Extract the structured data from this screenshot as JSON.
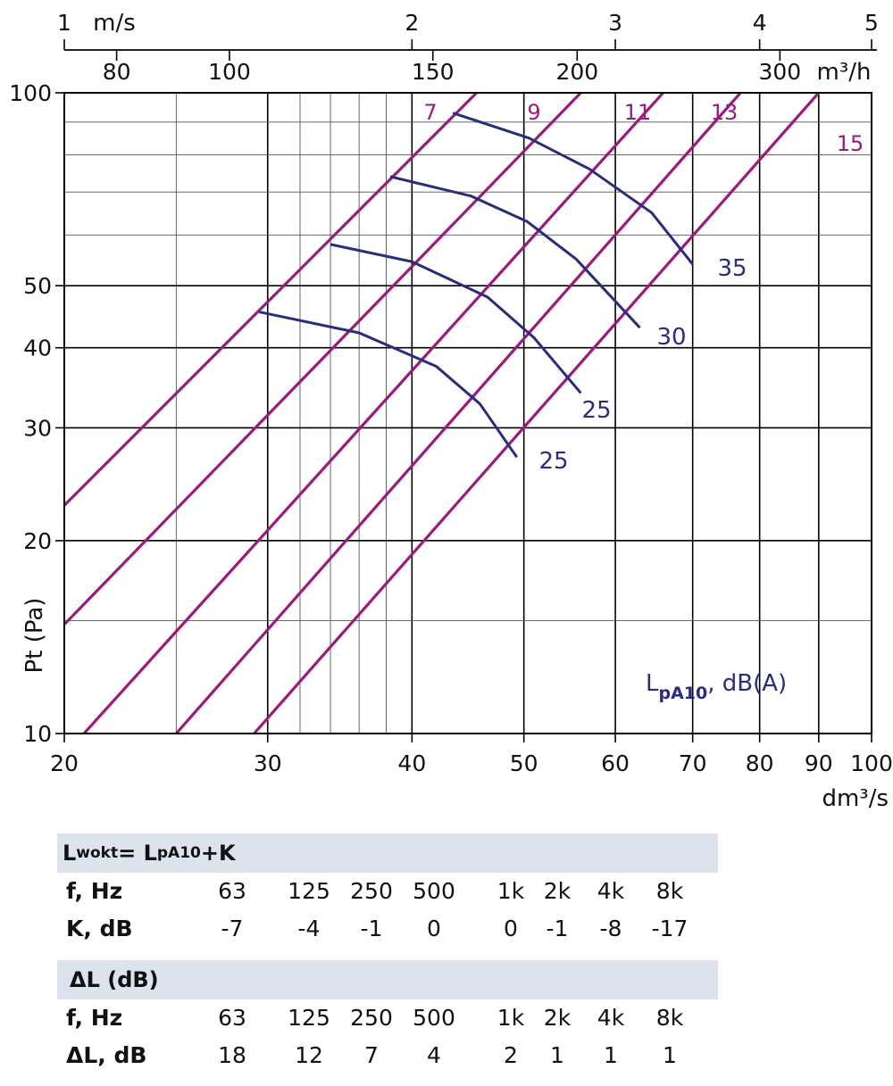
{
  "chart_data": {
    "type": "line",
    "ylabel": "Pt (Pa)",
    "xlabel": "dm³/s",
    "x_scale": "log",
    "y_scale": "log",
    "xlim": [
      20,
      100
    ],
    "ylim": [
      10,
      100
    ],
    "x_ticks": [
      20,
      30,
      40,
      50,
      60,
      70,
      80,
      90,
      100
    ],
    "y_ticks": [
      10,
      20,
      30,
      40,
      50,
      100
    ],
    "y_tick_labels": [
      "10",
      "20",
      "30",
      "40",
      "50",
      "100"
    ],
    "top_axis_velocity": {
      "unit": "m/s",
      "ticks": [
        {
          "label": "1",
          "x_dm3s": 20.0
        },
        {
          "label": "2",
          "x_dm3s": 40.0
        },
        {
          "label": "3",
          "x_dm3s": 60.0
        },
        {
          "label": "4",
          "x_dm3s": 80.0
        },
        {
          "label": "5",
          "x_dm3s": 100.0
        }
      ]
    },
    "top_axis_flow": {
      "unit": "m³/h",
      "ticks": [
        {
          "label": "80",
          "x_dm3s": 22.2
        },
        {
          "label": "100",
          "x_dm3s": 27.8
        },
        {
          "label": "150",
          "x_dm3s": 41.7
        },
        {
          "label": "200",
          "x_dm3s": 55.6
        },
        {
          "label": "300",
          "x_dm3s": 83.3
        }
      ]
    },
    "damper_lines": {
      "series": [
        {
          "name": "7",
          "points": [
            [
              20,
              22.7
            ],
            [
              45.5,
              100
            ]
          ]
        },
        {
          "name": "9",
          "points": [
            [
              20,
              14.8
            ],
            [
              56,
              100
            ]
          ]
        },
        {
          "name": "11",
          "points": [
            [
              20.8,
              10
            ],
            [
              66,
              100
            ]
          ]
        },
        {
          "name": "13",
          "points": [
            [
              25,
              10
            ],
            [
              77,
              100
            ]
          ]
        },
        {
          "name": "15",
          "points": [
            [
              29.2,
              10
            ],
            [
              90,
              100
            ]
          ]
        }
      ]
    },
    "sound_level_curves": {
      "series": [
        {
          "name": "35",
          "points": [
            [
              43.4,
              93
            ],
            [
              50.5,
              85
            ],
            [
              57,
              76
            ],
            [
              64.5,
              65
            ],
            [
              70,
              54
            ]
          ]
        },
        {
          "name": "30",
          "points": [
            [
              38.3,
              74
            ],
            [
              45,
              69
            ],
            [
              50.3,
              63
            ],
            [
              55.5,
              55
            ],
            [
              63,
              43
            ]
          ]
        },
        {
          "name": "25",
          "points": [
            [
              34,
              58
            ],
            [
              40,
              54.5
            ],
            [
              46.5,
              48
            ],
            [
              51,
              41.5
            ],
            [
              56,
              34
            ]
          ]
        },
        {
          "name": "25",
          "points": [
            [
              29.5,
              45.5
            ],
            [
              36,
              42.2
            ],
            [
              42,
              37.4
            ],
            [
              45.8,
              32.7
            ],
            [
              49.3,
              27
            ]
          ]
        }
      ]
    },
    "legend_text": {
      "base": "L",
      "sub": "pA10",
      "rest": ", dB(A)"
    }
  },
  "tables": {
    "formula": {
      "l1": "L",
      "s1": "wokt",
      "mid": "= L",
      "s2": "pA10",
      "end": "+K"
    },
    "freq_values": [
      "63",
      "125",
      "250",
      "500",
      "1k",
      "2k",
      "4k",
      "8k"
    ],
    "k_table": {
      "freq_label": "f, Hz",
      "val_label": "K, dB",
      "values": [
        "-7",
        "-4",
        "-1",
        "0",
        "0",
        "-1",
        "-8",
        "-17"
      ]
    },
    "dl_table": {
      "title": "ΔL (dB)",
      "freq_label": "f, Hz",
      "val_label": "ΔL, dB",
      "values": [
        "18",
        "12",
        "7",
        "4",
        "2",
        "1",
        "1",
        "1"
      ]
    }
  },
  "colors": {
    "damper": "#9a1a7e",
    "sound": "#2a2d7c",
    "band": "#dde3ec",
    "grid": "#000000"
  }
}
